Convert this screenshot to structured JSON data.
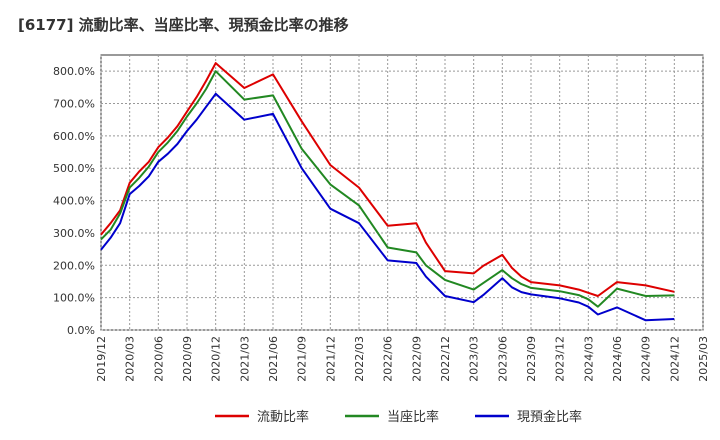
{
  "chart_data": {
    "type": "line",
    "title": "[6177]  流動比率、当座比率、現預金比率の推移",
    "xlabel": "",
    "ylabel": "",
    "ylim": [
      0,
      850
    ],
    "y_ticks": [
      0,
      100,
      200,
      300,
      400,
      500,
      600,
      700,
      800
    ],
    "y_tick_labels": [
      "0.0%",
      "100.0%",
      "200.0%",
      "300.0%",
      "400.0%",
      "500.0%",
      "600.0%",
      "700.0%",
      "800.0%"
    ],
    "x_ticks": [
      "2019/12",
      "2020/03",
      "2020/06",
      "2020/09",
      "2020/12",
      "2021/03",
      "2021/06",
      "2021/09",
      "2021/12",
      "2022/03",
      "2022/06",
      "2022/09",
      "2022/12",
      "2023/03",
      "2023/06",
      "2023/09",
      "2023/12",
      "2024/03",
      "2024/06",
      "2024/09",
      "2024/12",
      "2025/03"
    ],
    "x_start": "2019/12",
    "x": [
      "2019/12",
      "2020/01",
      "2020/02",
      "2020/03",
      "2020/04",
      "2020/05",
      "2020/06",
      "2020/07",
      "2020/08",
      "2020/09",
      "2020/10",
      "2020/11",
      "2020/12",
      "2021/03",
      "2021/06",
      "2021/09",
      "2021/12",
      "2022/03",
      "2022/06",
      "2022/09",
      "2022/10",
      "2022/12",
      "2023/03",
      "2023/04",
      "2023/06",
      "2023/07",
      "2023/08",
      "2023/09",
      "2023/12",
      "2024/02",
      "2024/03",
      "2024/04",
      "2024/06",
      "2024/09",
      "2024/12"
    ],
    "series": [
      {
        "name": "流動比率",
        "color": "#dd0000",
        "values": [
          295,
          330,
          370,
          455,
          490,
          520,
          565,
          595,
          630,
          675,
          720,
          770,
          825,
          748,
          790,
          645,
          510,
          440,
          322,
          330,
          270,
          182,
          175,
          198,
          232,
          192,
          165,
          148,
          138,
          125,
          115,
          105,
          148,
          138,
          118
        ]
      },
      {
        "name": "当座比率",
        "color": "#228822",
        "values": [
          280,
          310,
          360,
          440,
          470,
          505,
          550,
          580,
          615,
          660,
          700,
          745,
          800,
          712,
          725,
          560,
          450,
          385,
          255,
          240,
          200,
          155,
          125,
          145,
          185,
          160,
          142,
          130,
          120,
          108,
          95,
          72,
          128,
          105,
          107
        ]
      },
      {
        "name": "現預金比率",
        "color": "#0000cc",
        "values": [
          248,
          285,
          330,
          420,
          445,
          475,
          520,
          545,
          575,
          615,
          650,
          690,
          730,
          650,
          668,
          500,
          375,
          330,
          215,
          207,
          165,
          105,
          86,
          108,
          160,
          132,
          117,
          110,
          98,
          85,
          72,
          48,
          70,
          30,
          34
        ]
      }
    ],
    "legend": [
      "流動比率",
      "当座比率",
      "現預金比率"
    ],
    "legend_position": "bottom-center",
    "grid": true
  }
}
